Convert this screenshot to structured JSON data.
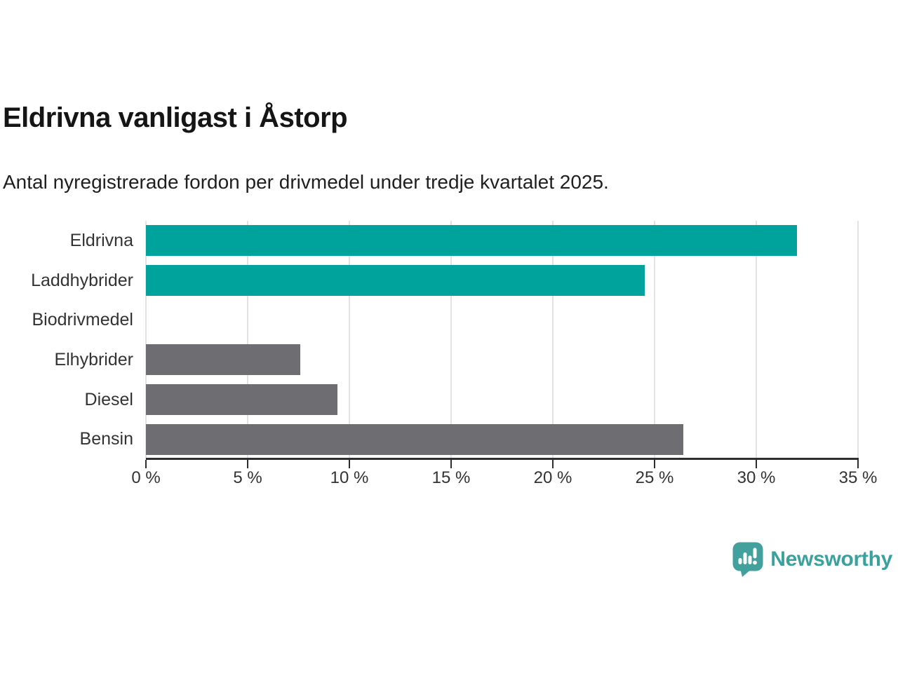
{
  "chart_data": {
    "type": "bar",
    "orientation": "horizontal",
    "title": "Eldrivna vanligast i Åstorp",
    "subtitle": "Antal nyregistrerade fordon per drivmedel under tredje kvartalet 2025.",
    "categories": [
      "Eldrivna",
      "Laddhybrider",
      "Biodrivmedel",
      "Elhybrider",
      "Diesel",
      "Bensin"
    ],
    "values": [
      32.0,
      24.5,
      0,
      7.6,
      9.4,
      26.4
    ],
    "unit": "%",
    "bar_colors": [
      "#00a39b",
      "#00a39b",
      "#6e6e72",
      "#6e6e72",
      "#6e6e72",
      "#6e6e72"
    ],
    "highlight_color": "#00a39b",
    "default_color": "#6e6e72",
    "xlim": [
      0,
      35
    ],
    "x_ticks": [
      0,
      5,
      10,
      15,
      20,
      25,
      30,
      35
    ],
    "x_tick_labels": [
      "0 %",
      "5 %",
      "10 %",
      "15 %",
      "20 %",
      "25 %",
      "30 %",
      "35 %"
    ],
    "grid": true,
    "grid_color": "#e2e2e2",
    "axis_color": "#2e2e2e",
    "legend": false
  },
  "footer": {
    "brand": "Newsworthy",
    "logo_color": "#42a09d"
  }
}
